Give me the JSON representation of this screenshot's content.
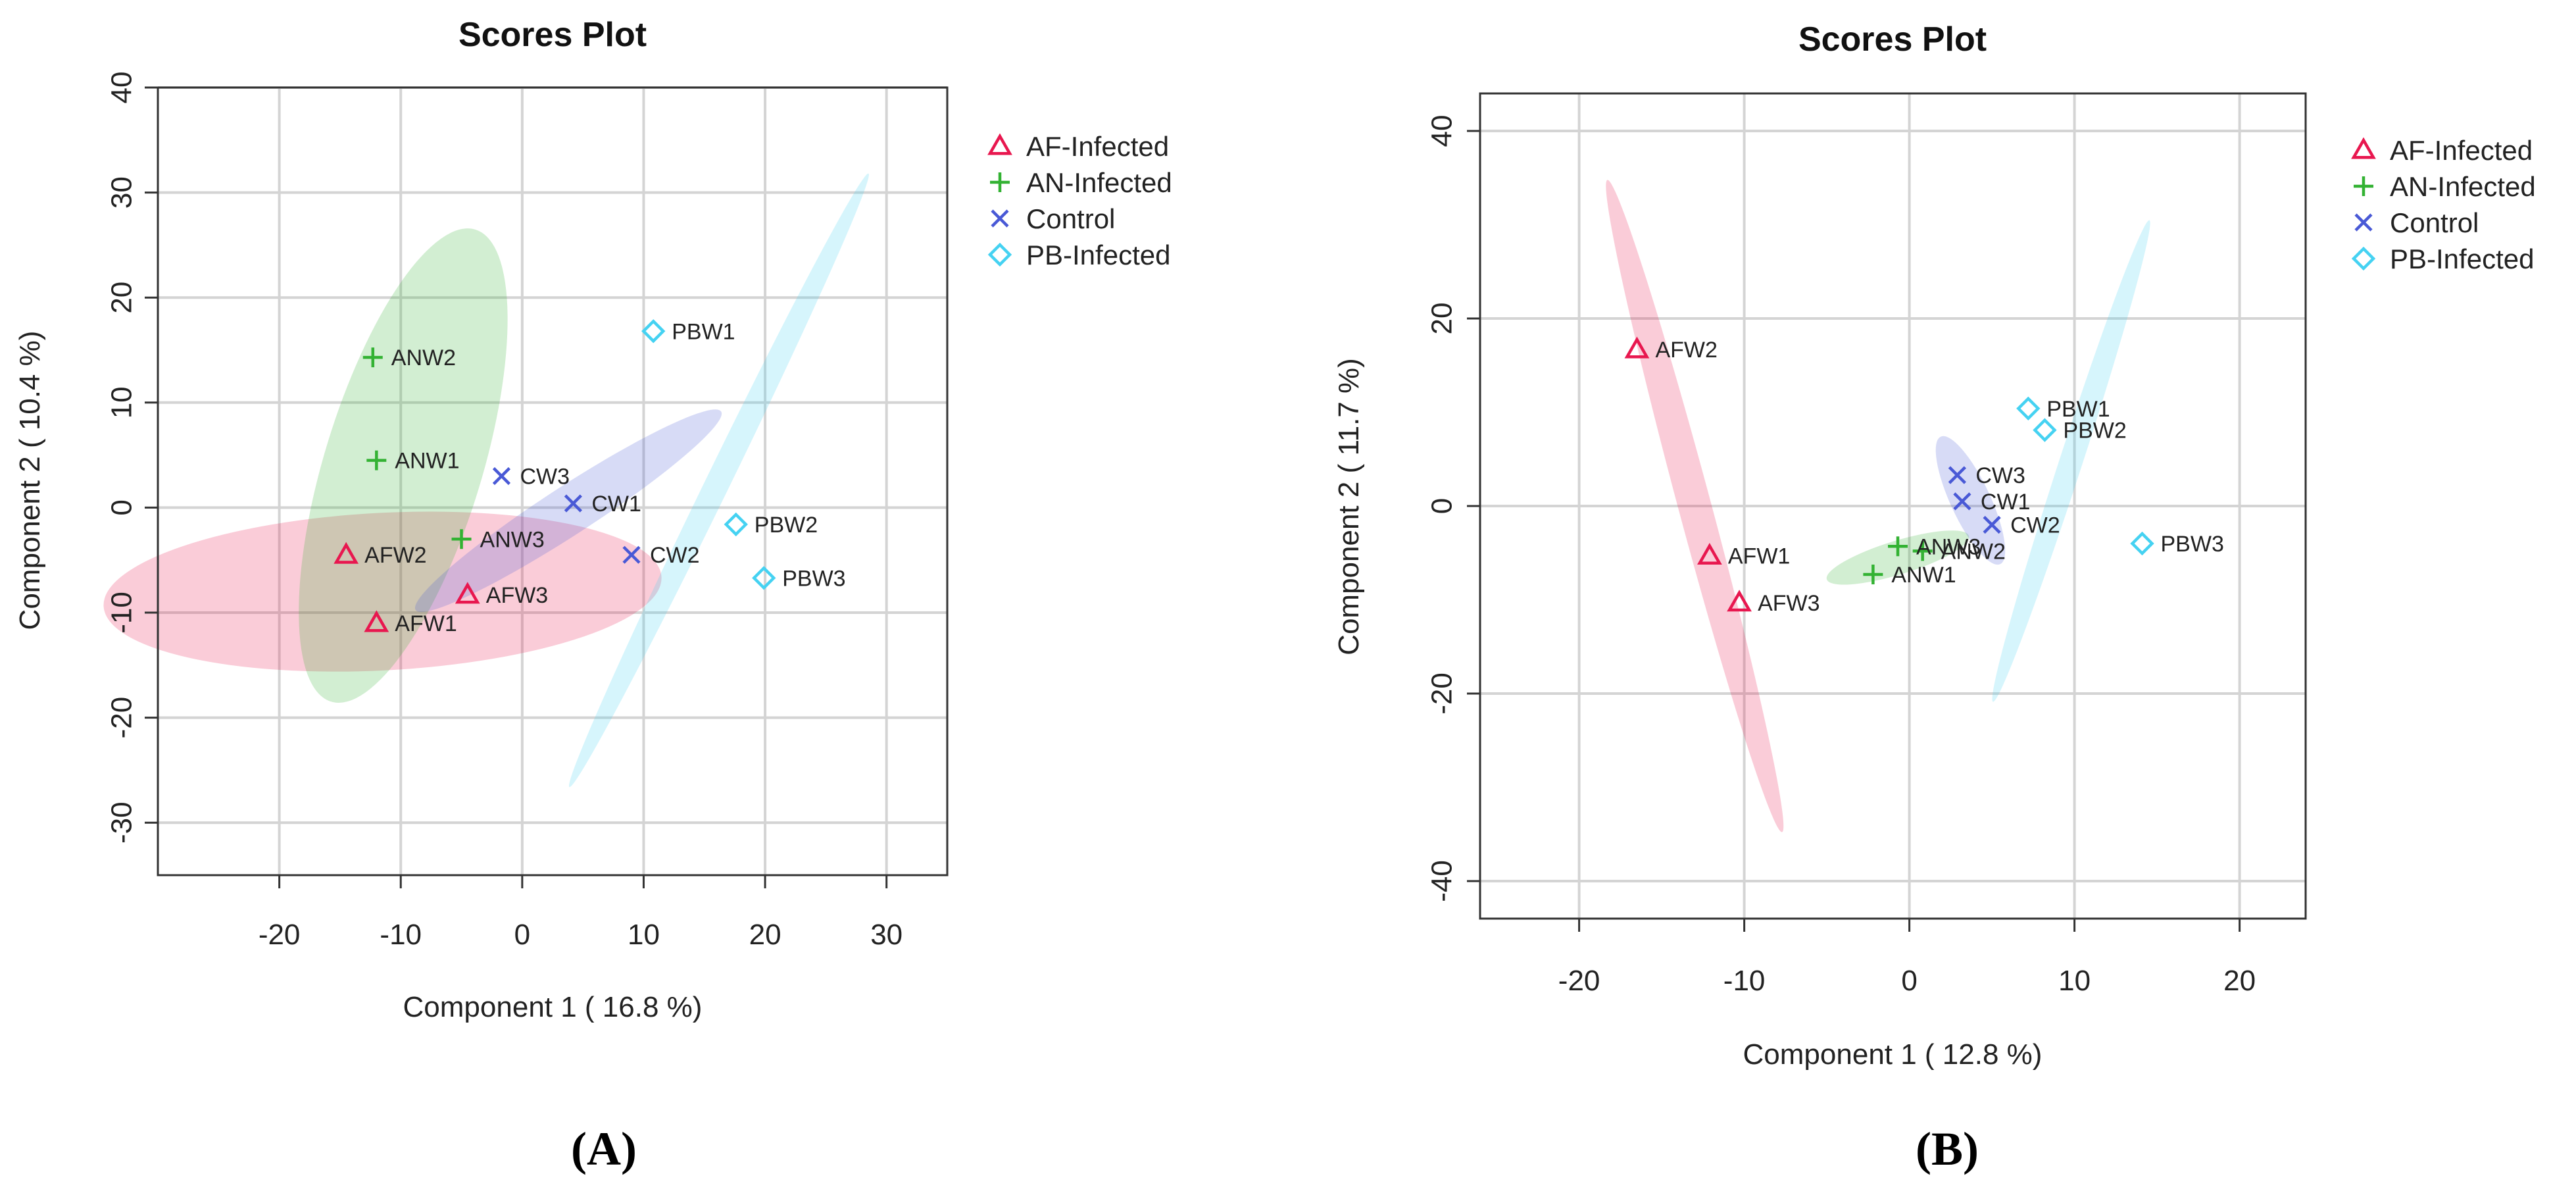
{
  "chart_data": [
    {
      "type": "scatter",
      "panel_label": "(A)",
      "title": "Scores Plot",
      "xlabel": "Component 1 ( 16.8 %)",
      "ylabel": "Component 2 ( 10.4 %)",
      "xlim": [
        -30,
        35
      ],
      "ylim": [
        -35,
        40
      ],
      "xticks": [
        -20,
        -10,
        0,
        10,
        20,
        30
      ],
      "yticks": [
        -30,
        -20,
        -10,
        0,
        10,
        20,
        30,
        40
      ],
      "grid": true,
      "legend": "top-right outside",
      "series": [
        {
          "name": "AF-Infected",
          "marker": "triangle",
          "color": "#e8174f",
          "points": [
            {
              "label": "AFW1",
              "x": -12,
              "y": -11
            },
            {
              "label": "AFW2",
              "x": -14.5,
              "y": -4.5
            },
            {
              "label": "AFW3",
              "x": -4.5,
              "y": -8.3
            }
          ],
          "ellipse": {
            "cx": -11.5,
            "cy": -8,
            "rx": 23,
            "ry": 7.5,
            "angle": -3
          }
        },
        {
          "name": "AN-Infected",
          "marker": "plus",
          "color": "#33b233",
          "points": [
            {
              "label": "ANW1",
              "x": -12,
              "y": 4.5
            },
            {
              "label": "ANW2",
              "x": -12.3,
              "y": 14.3
            },
            {
              "label": "ANW3",
              "x": -5,
              "y": -3
            }
          ],
          "ellipse": {
            "cx": -9.8,
            "cy": 4,
            "rx": 6.5,
            "ry": 23.5,
            "angle": 17
          }
        },
        {
          "name": "Control",
          "marker": "x",
          "color": "#4959d6",
          "points": [
            {
              "label": "CW1",
              "x": 4.2,
              "y": 0.4
            },
            {
              "label": "CW2",
              "x": 9,
              "y": -4.5
            },
            {
              "label": "CW3",
              "x": -1.7,
              "y": 3
            }
          ],
          "ellipse": {
            "cx": 3.8,
            "cy": -0.3,
            "rx": 15,
            "ry": 2.3,
            "angle": -33
          }
        },
        {
          "name": "PB-Infected",
          "marker": "diamond",
          "color": "#45d2f2",
          "points": [
            {
              "label": "PBW1",
              "x": 10.8,
              "y": 16.8
            },
            {
              "label": "PBW2",
              "x": 17.6,
              "y": -1.6
            },
            {
              "label": "PBW3",
              "x": 19.9,
              "y": -6.7
            }
          ],
          "ellipse": {
            "cx": 16.2,
            "cy": 2.6,
            "rx": 1,
            "ry": 32.5,
            "angle": 26
          }
        }
      ]
    },
    {
      "type": "scatter",
      "panel_label": "(B)",
      "title": "Scores Plot",
      "xlabel": "Component 1 ( 12.8 %)",
      "ylabel": "Component 2 ( 11.7 %)",
      "xlim": [
        -26,
        24
      ],
      "ylim": [
        -44,
        44
      ],
      "xticks": [
        -20,
        -10,
        0,
        10,
        20
      ],
      "yticks": [
        -40,
        -20,
        0,
        20,
        40
      ],
      "grid": true,
      "legend": "top-right outside",
      "series": [
        {
          "name": "AF-Infected",
          "marker": "triangle",
          "color": "#e8174f",
          "points": [
            {
              "label": "AFW1",
              "x": -12.1,
              "y": -5.3
            },
            {
              "label": "AFW2",
              "x": -16.5,
              "y": 16.7
            },
            {
              "label": "AFW3",
              "x": -10.3,
              "y": -10.3
            }
          ],
          "ellipse": {
            "cx": -13,
            "cy": 0,
            "rx": 1,
            "ry": 36,
            "angle": -15
          }
        },
        {
          "name": "AN-Infected",
          "marker": "plus",
          "color": "#33b233",
          "points": [
            {
              "label": "ANW1",
              "x": -2.2,
              "y": -7.3
            },
            {
              "label": "ANW2",
              "x": 0.8,
              "y": -4.8
            },
            {
              "label": "ANW3",
              "x": -0.7,
              "y": -4.3
            }
          ],
          "ellipse": {
            "cx": -0.7,
            "cy": -5.5,
            "rx": 4.5,
            "ry": 1.8,
            "angle": -17
          }
        },
        {
          "name": "Control",
          "marker": "x",
          "color": "#4959d6",
          "points": [
            {
              "label": "CW1",
              "x": 3.2,
              "y": 0.5
            },
            {
              "label": "CW2",
              "x": 5,
              "y": -2
            },
            {
              "label": "CW3",
              "x": 2.9,
              "y": 3.3
            }
          ],
          "ellipse": {
            "cx": 3.7,
            "cy": 0.6,
            "rx": 1.2,
            "ry": 7.5,
            "angle": -25
          }
        },
        {
          "name": "PB-Infected",
          "marker": "diamond",
          "color": "#45d2f2",
          "points": [
            {
              "label": "PBW1",
              "x": 7.2,
              "y": 10.4
            },
            {
              "label": "PBW2",
              "x": 8.2,
              "y": 8.1
            },
            {
              "label": "PBW3",
              "x": 14.1,
              "y": -4
            }
          ],
          "ellipse": {
            "cx": 9.8,
            "cy": 4.8,
            "rx": 0.7,
            "ry": 27,
            "angle": 18
          }
        }
      ]
    }
  ]
}
